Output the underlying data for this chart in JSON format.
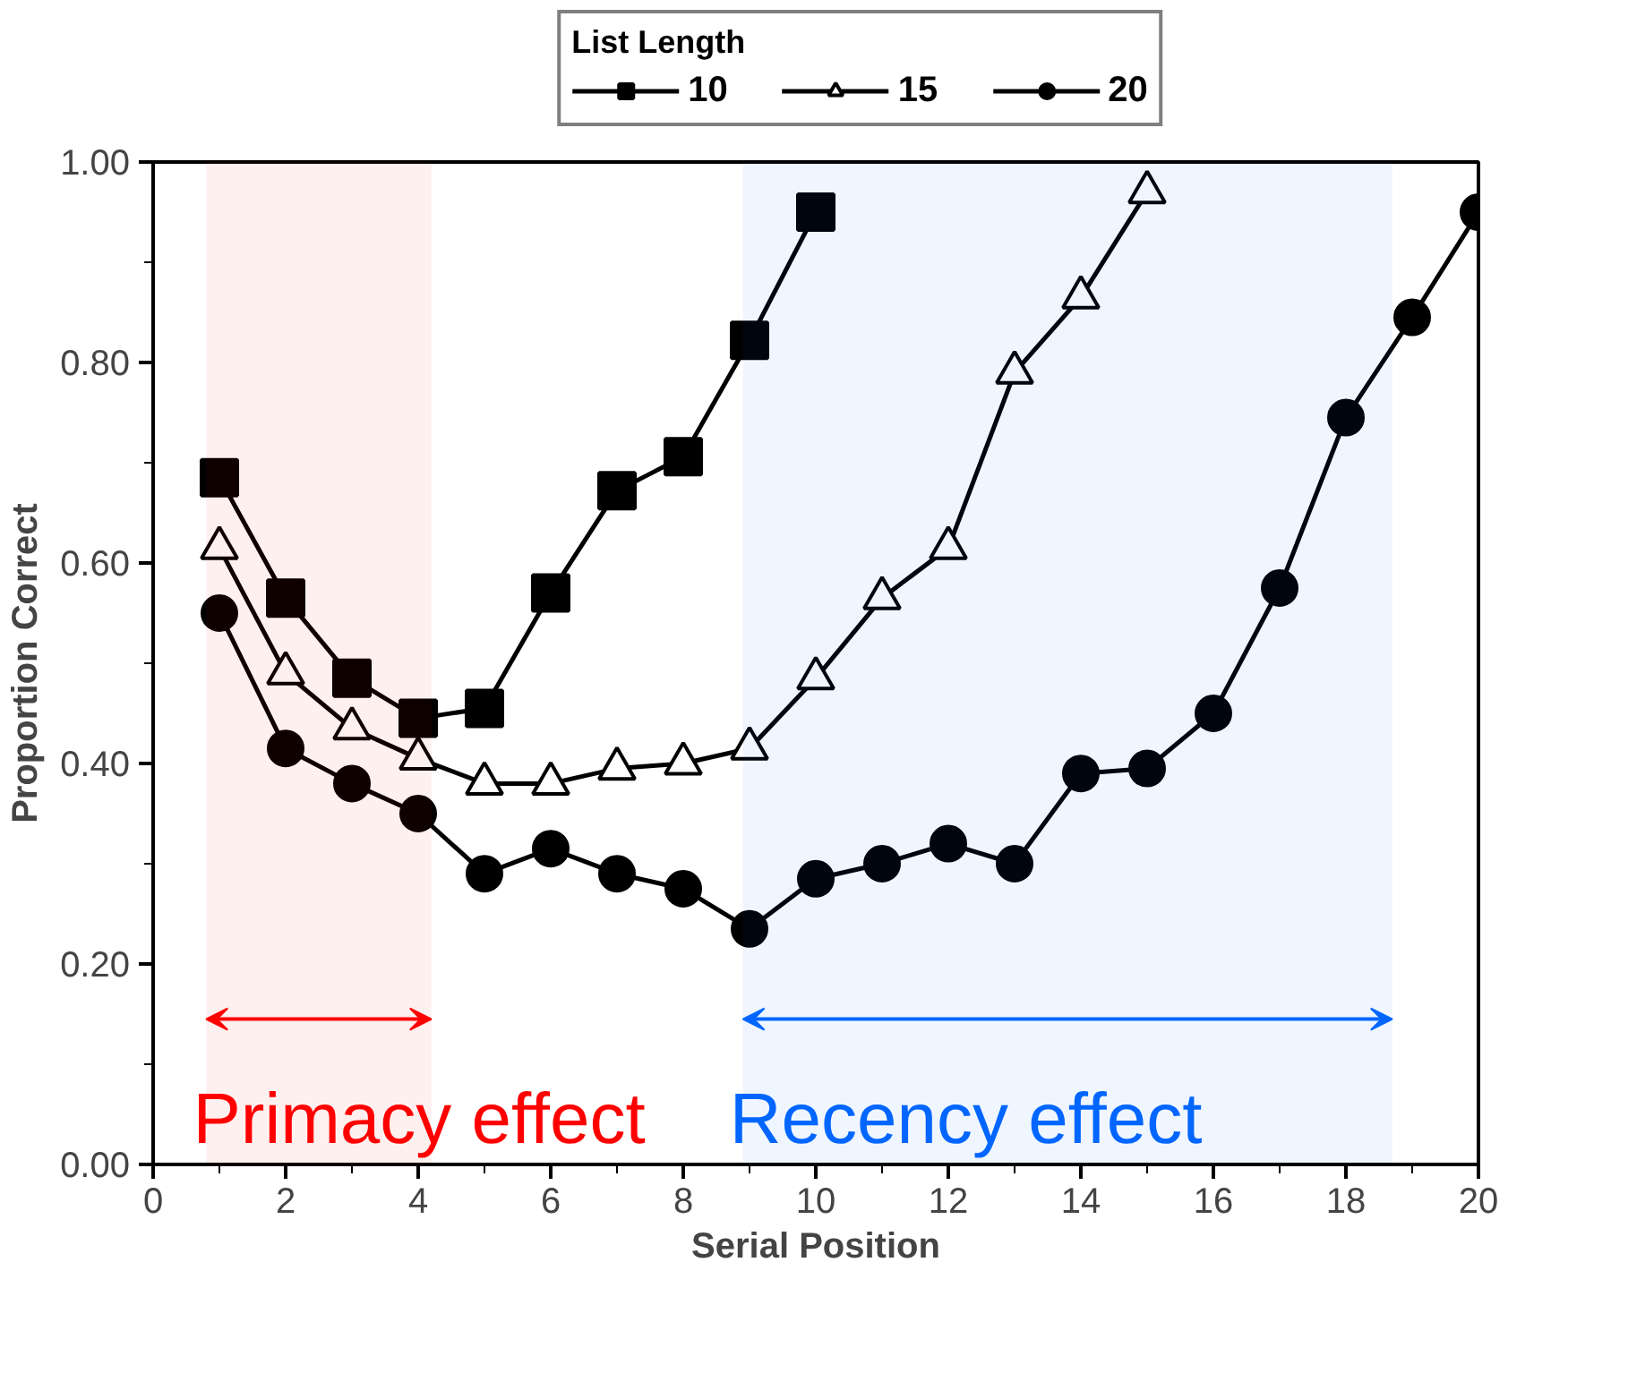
{
  "chart_data": {
    "type": "line",
    "xlabel": "Serial Position",
    "ylabel": "Proportion Correct",
    "legend_title": "List Length",
    "x": [
      1,
      2,
      3,
      4,
      5,
      6,
      7,
      8,
      9,
      10,
      11,
      12,
      13,
      14,
      15,
      16,
      17,
      18,
      19,
      20
    ],
    "series": [
      {
        "name": "10",
        "color": "#000000",
        "marker": "square",
        "values": [
          0.685,
          0.565,
          0.485,
          0.445,
          0.455,
          0.57,
          0.672,
          0.706,
          0.822,
          0.95,
          null,
          null,
          null,
          null,
          null,
          null,
          null,
          null,
          null,
          null
        ]
      },
      {
        "name": "15",
        "color": "#000000",
        "marker": "triangle",
        "values": [
          0.615,
          0.49,
          0.435,
          0.405,
          0.38,
          0.38,
          0.395,
          0.4,
          0.415,
          0.485,
          0.565,
          0.615,
          0.79,
          0.865,
          0.97,
          null,
          null,
          null,
          null,
          null
        ]
      },
      {
        "name": "20",
        "color": "#000000",
        "marker": "circle",
        "values": [
          0.55,
          0.415,
          0.38,
          0.35,
          0.29,
          0.315,
          0.29,
          0.275,
          0.235,
          0.285,
          0.3,
          0.32,
          0.3,
          0.39,
          0.395,
          0.45,
          0.575,
          0.745,
          0.845,
          0.95
        ]
      }
    ],
    "xlim": [
      0,
      20
    ],
    "xticks": [
      0,
      2,
      4,
      6,
      8,
      10,
      12,
      14,
      16,
      18,
      20
    ],
    "ylim": [
      0,
      1.0
    ],
    "yticks": [
      {
        "value": 0,
        "label": "0.00"
      },
      {
        "value": 0.2,
        "label": "0.20"
      },
      {
        "value": 0.4,
        "label": "0.40"
      },
      {
        "value": 0.6,
        "label": "0.60"
      },
      {
        "value": 0.8,
        "label": "0.80"
      },
      {
        "value": 1.0,
        "label": "1.00"
      }
    ],
    "bands": [
      {
        "axis": "x",
        "from": 0.8,
        "to": 4.2,
        "label": "Primacy effect",
        "color": "#ff0000"
      },
      {
        "axis": "x",
        "from": 8.9,
        "to": 18.7,
        "label": "Recency effect",
        "color": "#0066ff"
      }
    ],
    "grid": false,
    "legend": "top"
  }
}
